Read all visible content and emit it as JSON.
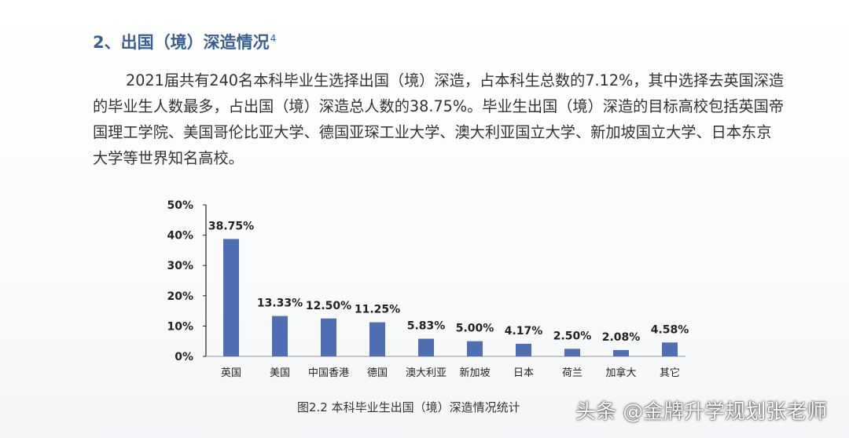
{
  "section": {
    "title": "2、出国（境）深造情况",
    "footnote_mark": "4"
  },
  "paragraph": "2021届共有240名本科毕业生选择出国（境）深造，占本科生总数的7.12%，其中选择去英国深造的毕业生人数最多，占出国（境）深造总人数的38.75%。毕业生出国（境）深造的目标高校包括英国帝国理工学院、美国哥伦比亚大学、德国亚琛工业大学、澳大利亚国立大学、新加坡国立大学、日本东京大学等世界知名高校。",
  "caption": "图2.2  本科毕业生出国（境）深造情况统计",
  "watermark": "头条 @金牌升学规划张老师",
  "colors": {
    "bar": "#4f6fb5",
    "title": "#3a5f93",
    "text": "#333333"
  },
  "chart_data": {
    "type": "bar",
    "categories": [
      "英国",
      "美国",
      "中国香港",
      "德国",
      "澳大利亚",
      "新加坡",
      "日本",
      "荷兰",
      "加拿大",
      "其它"
    ],
    "values": [
      38.75,
      13.33,
      12.5,
      11.25,
      5.83,
      5.0,
      4.17,
      2.5,
      2.08,
      4.58
    ],
    "data_labels": [
      "38.75%",
      "13.33%",
      "12.50%",
      "11.25%",
      "5.83%",
      "5.00%",
      "4.17%",
      "2.50%",
      "2.08%",
      "4.58%"
    ],
    "yticks": [
      "0%",
      "10%",
      "20%",
      "30%",
      "40%",
      "50%"
    ],
    "ylim": [
      0,
      50
    ],
    "grid": false,
    "title": "",
    "xlabel": "",
    "ylabel": ""
  }
}
